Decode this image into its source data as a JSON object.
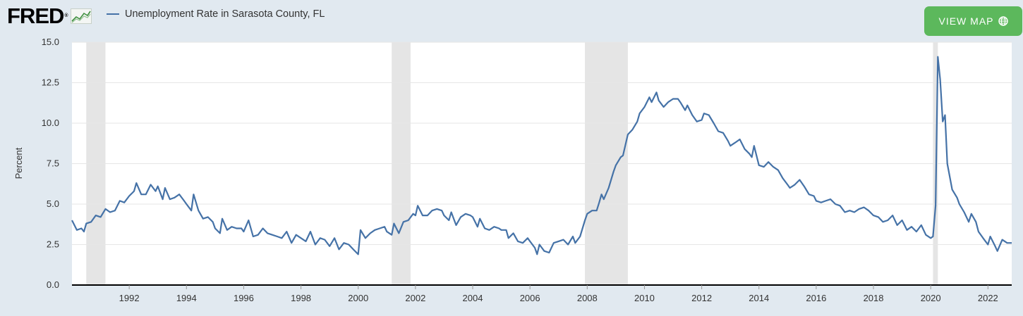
{
  "header": {
    "logo_text": "FRED",
    "logo_mark": "®",
    "view_map_label": "VIEW MAP"
  },
  "colors": {
    "page_bg": "#e1e9f0",
    "plot_bg": "#ffffff",
    "series": "#4572a7",
    "recession": "#e5e5e5",
    "button": "#5cb85c"
  },
  "icons": [
    "fred-chart-icon",
    "globe-icon"
  ],
  "chart_data": {
    "type": "line",
    "title": "",
    "ylabel": "Percent",
    "xlabel": "",
    "ylim": [
      0,
      15
    ],
    "xlim": [
      1990.0,
      2022.83
    ],
    "y_ticks": [
      "0.0",
      "2.5",
      "5.0",
      "7.5",
      "10.0",
      "12.5",
      "15.0"
    ],
    "x_ticks": [
      "1992",
      "1994",
      "1996",
      "1998",
      "2000",
      "2002",
      "2004",
      "2006",
      "2008",
      "2010",
      "2012",
      "2014",
      "2016",
      "2018",
      "2020",
      "2022"
    ],
    "grid": true,
    "legend": "top-left",
    "recessions": [
      [
        1990.5,
        1991.17
      ],
      [
        2001.17,
        2001.83
      ],
      [
        2007.92,
        2009.42
      ],
      [
        2020.08,
        2020.25
      ]
    ],
    "series": [
      {
        "name": "Unemployment Rate in Sarasota County, FL",
        "points": [
          [
            1990.0,
            4.0
          ],
          [
            1990.17,
            3.4
          ],
          [
            1990.33,
            3.5
          ],
          [
            1990.42,
            3.3
          ],
          [
            1990.5,
            3.8
          ],
          [
            1990.67,
            3.9
          ],
          [
            1990.83,
            4.3
          ],
          [
            1991.0,
            4.2
          ],
          [
            1991.17,
            4.7
          ],
          [
            1991.33,
            4.5
          ],
          [
            1991.5,
            4.6
          ],
          [
            1991.67,
            5.2
          ],
          [
            1991.83,
            5.1
          ],
          [
            1992.0,
            5.5
          ],
          [
            1992.17,
            5.8
          ],
          [
            1992.25,
            6.3
          ],
          [
            1992.42,
            5.6
          ],
          [
            1992.58,
            5.6
          ],
          [
            1992.75,
            6.2
          ],
          [
            1992.92,
            5.8
          ],
          [
            1993.0,
            6.1
          ],
          [
            1993.17,
            5.3
          ],
          [
            1993.25,
            6.0
          ],
          [
            1993.42,
            5.3
          ],
          [
            1993.58,
            5.4
          ],
          [
            1993.75,
            5.6
          ],
          [
            1993.92,
            5.2
          ],
          [
            1994.0,
            5.0
          ],
          [
            1994.17,
            4.6
          ],
          [
            1994.25,
            5.6
          ],
          [
            1994.42,
            4.6
          ],
          [
            1994.58,
            4.1
          ],
          [
            1994.75,
            4.2
          ],
          [
            1994.92,
            3.9
          ],
          [
            1995.0,
            3.5
          ],
          [
            1995.17,
            3.2
          ],
          [
            1995.25,
            4.1
          ],
          [
            1995.42,
            3.4
          ],
          [
            1995.58,
            3.6
          ],
          [
            1995.75,
            3.5
          ],
          [
            1995.92,
            3.5
          ],
          [
            1996.0,
            3.3
          ],
          [
            1996.17,
            4.0
          ],
          [
            1996.33,
            3.0
          ],
          [
            1996.5,
            3.1
          ],
          [
            1996.67,
            3.5
          ],
          [
            1996.83,
            3.2
          ],
          [
            1997.0,
            3.1
          ],
          [
            1997.17,
            3.0
          ],
          [
            1997.33,
            2.9
          ],
          [
            1997.5,
            3.3
          ],
          [
            1997.67,
            2.6
          ],
          [
            1997.83,
            3.1
          ],
          [
            1998.0,
            2.9
          ],
          [
            1998.17,
            2.7
          ],
          [
            1998.33,
            3.3
          ],
          [
            1998.5,
            2.5
          ],
          [
            1998.67,
            2.9
          ],
          [
            1998.83,
            2.8
          ],
          [
            1999.0,
            2.4
          ],
          [
            1999.17,
            2.9
          ],
          [
            1999.33,
            2.2
          ],
          [
            1999.5,
            2.6
          ],
          [
            1999.67,
            2.5
          ],
          [
            1999.83,
            2.2
          ],
          [
            2000.0,
            1.9
          ],
          [
            2000.08,
            3.4
          ],
          [
            2000.25,
            2.9
          ],
          [
            2000.42,
            3.2
          ],
          [
            2000.58,
            3.4
          ],
          [
            2000.75,
            3.5
          ],
          [
            2000.92,
            3.6
          ],
          [
            2001.0,
            3.3
          ],
          [
            2001.17,
            3.1
          ],
          [
            2001.25,
            3.8
          ],
          [
            2001.42,
            3.2
          ],
          [
            2001.58,
            3.9
          ],
          [
            2001.75,
            4.0
          ],
          [
            2001.92,
            4.4
          ],
          [
            2002.0,
            4.3
          ],
          [
            2002.08,
            4.9
          ],
          [
            2002.25,
            4.3
          ],
          [
            2002.42,
            4.3
          ],
          [
            2002.58,
            4.6
          ],
          [
            2002.75,
            4.7
          ],
          [
            2002.92,
            4.6
          ],
          [
            2003.0,
            4.3
          ],
          [
            2003.17,
            4.0
          ],
          [
            2003.25,
            4.5
          ],
          [
            2003.42,
            3.7
          ],
          [
            2003.58,
            4.2
          ],
          [
            2003.75,
            4.4
          ],
          [
            2003.92,
            4.3
          ],
          [
            2004.0,
            4.2
          ],
          [
            2004.17,
            3.6
          ],
          [
            2004.25,
            4.1
          ],
          [
            2004.42,
            3.5
          ],
          [
            2004.58,
            3.4
          ],
          [
            2004.75,
            3.6
          ],
          [
            2004.92,
            3.5
          ],
          [
            2005.0,
            3.4
          ],
          [
            2005.17,
            3.4
          ],
          [
            2005.25,
            2.9
          ],
          [
            2005.42,
            3.2
          ],
          [
            2005.58,
            2.7
          ],
          [
            2005.75,
            2.6
          ],
          [
            2005.92,
            2.9
          ],
          [
            2006.0,
            2.7
          ],
          [
            2006.17,
            2.3
          ],
          [
            2006.25,
            1.9
          ],
          [
            2006.33,
            2.5
          ],
          [
            2006.5,
            2.1
          ],
          [
            2006.67,
            2.0
          ],
          [
            2006.83,
            2.6
          ],
          [
            2007.0,
            2.7
          ],
          [
            2007.17,
            2.8
          ],
          [
            2007.33,
            2.5
          ],
          [
            2007.5,
            3.0
          ],
          [
            2007.58,
            2.6
          ],
          [
            2007.75,
            3.0
          ],
          [
            2007.92,
            4.0
          ],
          [
            2008.0,
            4.4
          ],
          [
            2008.17,
            4.6
          ],
          [
            2008.33,
            4.6
          ],
          [
            2008.42,
            5.1
          ],
          [
            2008.5,
            5.6
          ],
          [
            2008.58,
            5.3
          ],
          [
            2008.75,
            6.0
          ],
          [
            2008.92,
            7.0
          ],
          [
            2009.0,
            7.4
          ],
          [
            2009.17,
            7.9
          ],
          [
            2009.25,
            8.0
          ],
          [
            2009.42,
            9.3
          ],
          [
            2009.58,
            9.6
          ],
          [
            2009.75,
            10.1
          ],
          [
            2009.83,
            10.6
          ],
          [
            2010.0,
            11.0
          ],
          [
            2010.17,
            11.6
          ],
          [
            2010.25,
            11.3
          ],
          [
            2010.42,
            11.9
          ],
          [
            2010.5,
            11.4
          ],
          [
            2010.67,
            11.0
          ],
          [
            2010.83,
            11.3
          ],
          [
            2011.0,
            11.5
          ],
          [
            2011.17,
            11.5
          ],
          [
            2011.25,
            11.3
          ],
          [
            2011.42,
            10.8
          ],
          [
            2011.5,
            11.1
          ],
          [
            2011.67,
            10.5
          ],
          [
            2011.83,
            10.1
          ],
          [
            2012.0,
            10.2
          ],
          [
            2012.08,
            10.6
          ],
          [
            2012.25,
            10.5
          ],
          [
            2012.42,
            10.0
          ],
          [
            2012.58,
            9.5
          ],
          [
            2012.75,
            9.4
          ],
          [
            2012.92,
            8.9
          ],
          [
            2013.0,
            8.6
          ],
          [
            2013.17,
            8.8
          ],
          [
            2013.33,
            9.0
          ],
          [
            2013.5,
            8.4
          ],
          [
            2013.67,
            8.1
          ],
          [
            2013.75,
            7.9
          ],
          [
            2013.83,
            8.6
          ],
          [
            2014.0,
            7.4
          ],
          [
            2014.17,
            7.3
          ],
          [
            2014.33,
            7.6
          ],
          [
            2014.5,
            7.3
          ],
          [
            2014.67,
            7.1
          ],
          [
            2014.83,
            6.6
          ],
          [
            2015.0,
            6.2
          ],
          [
            2015.08,
            6.0
          ],
          [
            2015.25,
            6.2
          ],
          [
            2015.42,
            6.5
          ],
          [
            2015.58,
            6.1
          ],
          [
            2015.75,
            5.6
          ],
          [
            2015.92,
            5.5
          ],
          [
            2016.0,
            5.2
          ],
          [
            2016.17,
            5.1
          ],
          [
            2016.33,
            5.2
          ],
          [
            2016.5,
            5.3
          ],
          [
            2016.67,
            5.0
          ],
          [
            2016.83,
            4.9
          ],
          [
            2017.0,
            4.5
          ],
          [
            2017.17,
            4.6
          ],
          [
            2017.33,
            4.5
          ],
          [
            2017.5,
            4.7
          ],
          [
            2017.67,
            4.8
          ],
          [
            2017.83,
            4.6
          ],
          [
            2018.0,
            4.3
          ],
          [
            2018.17,
            4.2
          ],
          [
            2018.33,
            3.9
          ],
          [
            2018.5,
            4.0
          ],
          [
            2018.67,
            4.3
          ],
          [
            2018.83,
            3.7
          ],
          [
            2019.0,
            4.0
          ],
          [
            2019.17,
            3.4
          ],
          [
            2019.33,
            3.6
          ],
          [
            2019.5,
            3.3
          ],
          [
            2019.67,
            3.7
          ],
          [
            2019.83,
            3.1
          ],
          [
            2020.0,
            2.9
          ],
          [
            2020.08,
            3.0
          ],
          [
            2020.17,
            4.9
          ],
          [
            2020.25,
            14.1
          ],
          [
            2020.33,
            12.7
          ],
          [
            2020.42,
            10.1
          ],
          [
            2020.5,
            10.5
          ],
          [
            2020.58,
            7.5
          ],
          [
            2020.75,
            5.9
          ],
          [
            2020.92,
            5.4
          ],
          [
            2021.0,
            5.0
          ],
          [
            2021.17,
            4.5
          ],
          [
            2021.33,
            3.9
          ],
          [
            2021.42,
            4.4
          ],
          [
            2021.58,
            3.9
          ],
          [
            2021.67,
            3.3
          ],
          [
            2021.83,
            2.9
          ],
          [
            2022.0,
            2.5
          ],
          [
            2022.08,
            3.0
          ],
          [
            2022.25,
            2.4
          ],
          [
            2022.33,
            2.1
          ],
          [
            2022.5,
            2.8
          ],
          [
            2022.67,
            2.6
          ],
          [
            2022.83,
            2.6
          ]
        ]
      }
    ]
  }
}
